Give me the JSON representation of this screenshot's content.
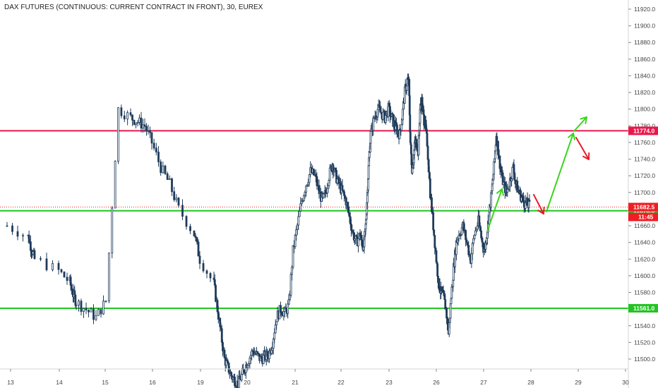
{
  "chart_data": {
    "type": "candlestick",
    "title": "DAX FUTURES (CONTINUOUS: CURRENT CONTRACT IN FRONT), 30, EUREX",
    "y_ticks": [
      11500,
      11520,
      11540,
      11560,
      11580,
      11600,
      11620,
      11640,
      11660,
      11680,
      11700,
      11720,
      11740,
      11760,
      11780,
      11800,
      11820,
      11840,
      11860,
      11880,
      11900,
      11920
    ],
    "ylim": [
      11488,
      11927
    ],
    "x_ticks": [
      "13",
      "14",
      "15",
      "16",
      "19",
      "20",
      "21",
      "22",
      "23",
      "26",
      "27",
      "28",
      "29",
      "30"
    ],
    "session_anchors": [
      [
        0,
        10
      ],
      [
        1,
        40
      ],
      [
        3,
        49
      ],
      [
        4,
        83
      ],
      [
        5,
        99
      ],
      [
        7,
        108
      ],
      [
        10,
        150
      ],
      [
        12,
        185
      ],
      [
        15,
        215
      ],
      [
        18,
        253
      ],
      [
        19,
        275
      ],
      [
        20,
        283
      ],
      [
        21,
        303
      ],
      [
        24,
        318
      ],
      [
        30,
        347
      ],
      [
        36,
        380
      ],
      [
        42,
        415
      ],
      [
        48,
        452
      ],
      [
        54,
        480
      ],
      [
        57,
        495
      ],
      [
        60,
        510
      ],
      [
        63,
        518
      ],
      [
        66,
        525
      ],
      [
        72,
        555
      ],
      [
        78,
        577
      ],
      [
        84,
        590
      ],
      [
        90,
        605
      ],
      [
        93,
        618
      ],
      [
        96,
        628
      ],
      [
        102,
        650
      ],
      [
        108,
        683
      ],
      [
        111,
        693
      ],
      [
        114,
        703
      ],
      [
        117,
        713
      ],
      [
        120,
        727
      ],
      [
        126,
        750
      ],
      [
        129,
        760
      ]
    ],
    "polyline_ohlc": [
      [
        0,
        11660
      ],
      [
        3,
        11620
      ],
      [
        6,
        11578
      ],
      [
        9,
        11550
      ],
      [
        10,
        11570
      ],
      [
        11,
        11800
      ],
      [
        12,
        11790
      ],
      [
        14,
        11780
      ],
      [
        15,
        11760
      ],
      [
        16,
        11730
      ],
      [
        17,
        11710
      ],
      [
        18,
        11680
      ],
      [
        19,
        11650
      ],
      [
        20,
        11620
      ],
      [
        21,
        11590
      ],
      [
        22,
        11560
      ],
      [
        23,
        11530
      ],
      [
        24,
        11500
      ],
      [
        26,
        11480
      ],
      [
        28,
        11470
      ],
      [
        30,
        11490
      ],
      [
        32,
        11510
      ],
      [
        34,
        11500
      ],
      [
        36,
        11505
      ],
      [
        37,
        11520
      ],
      [
        38,
        11550
      ],
      [
        39,
        11560
      ],
      [
        40,
        11555
      ],
      [
        41,
        11565
      ],
      [
        42,
        11630
      ],
      [
        43,
        11660
      ],
      [
        44,
        11690
      ],
      [
        45,
        11710
      ],
      [
        46,
        11725
      ],
      [
        47,
        11720
      ],
      [
        48,
        11700
      ],
      [
        49,
        11690
      ],
      [
        50,
        11700
      ],
      [
        51,
        11720
      ],
      [
        52,
        11735
      ],
      [
        53,
        11720
      ],
      [
        54,
        11710
      ],
      [
        55,
        11700
      ],
      [
        56,
        11690
      ],
      [
        57,
        11670
      ],
      [
        58,
        11650
      ],
      [
        59,
        11640
      ],
      [
        60,
        11650
      ],
      [
        61,
        11640
      ],
      [
        62,
        11635
      ],
      [
        63,
        11660
      ],
      [
        64,
        11700
      ],
      [
        65,
        11740
      ],
      [
        66,
        11770
      ],
      [
        67,
        11790
      ],
      [
        68,
        11800
      ],
      [
        69,
        11795
      ],
      [
        70,
        11790
      ],
      [
        71,
        11800
      ],
      [
        72,
        11790
      ],
      [
        73,
        11780
      ],
      [
        74,
        11775
      ],
      [
        75,
        11770
      ],
      [
        76,
        11790
      ],
      [
        77,
        11820
      ],
      [
        78,
        11835
      ],
      [
        79,
        11830
      ],
      [
        80,
        11760
      ],
      [
        81,
        11730
      ],
      [
        82,
        11740
      ],
      [
        83,
        11760
      ],
      [
        84,
        11760
      ],
      [
        85,
        11750
      ],
      [
        86,
        11800
      ],
      [
        87,
        11810
      ],
      [
        88,
        11790
      ],
      [
        89,
        11780
      ],
      [
        90,
        11760
      ],
      [
        91,
        11700
      ],
      [
        92,
        11660
      ],
      [
        93,
        11620
      ],
      [
        94,
        11590
      ],
      [
        95,
        11580
      ],
      [
        96,
        11575
      ],
      [
        97,
        11560
      ],
      [
        98,
        11530
      ],
      [
        99,
        11575
      ],
      [
        100,
        11610
      ],
      [
        101,
        11640
      ],
      [
        102,
        11650
      ],
      [
        103,
        11660
      ],
      [
        104,
        11640
      ],
      [
        105,
        11620
      ],
      [
        106,
        11650
      ],
      [
        107,
        11665
      ],
      [
        108,
        11640
      ],
      [
        109,
        11630
      ],
      [
        110,
        11650
      ],
      [
        111,
        11675
      ],
      [
        112,
        11700
      ],
      [
        113,
        11730
      ],
      [
        114,
        11770
      ],
      [
        115,
        11745
      ],
      [
        116,
        11725
      ],
      [
        117,
        11710
      ],
      [
        118,
        11700
      ],
      [
        119,
        11715
      ],
      [
        120,
        11730
      ],
      [
        121,
        11710
      ],
      [
        122,
        11700
      ],
      [
        123,
        11695
      ],
      [
        124,
        11688
      ],
      [
        126,
        11684
      ]
    ],
    "horizontal_lines": [
      {
        "value": 11774.0,
        "label": "11774.0",
        "color": "#e8174a"
      },
      {
        "value": 11678.0,
        "label": "11678.0",
        "color": "#22c422"
      },
      {
        "value": 11561.0,
        "label": "11561.0",
        "color": "#22c422"
      }
    ],
    "current_price": {
      "value": 11682.5,
      "label": "11682.5",
      "color": "#ef1d24",
      "time_label": "11:45",
      "time_color": "#ef1d24"
    },
    "arrows": [
      {
        "from": [
          690,
          328
        ],
        "to": [
          711,
          268
        ],
        "color": "#3bd41f"
      },
      {
        "from": [
          756,
          276
        ],
        "to": [
          770,
          303
        ],
        "color": "#e81c2a"
      },
      {
        "from": [
          774,
          300
        ],
        "to": [
          812,
          189
        ],
        "color": "#3bd41f"
      },
      {
        "from": [
          813,
          186
        ],
        "to": [
          831,
          166
        ],
        "color": "#3bd41f"
      },
      {
        "from": [
          816,
          195
        ],
        "to": [
          834,
          226
        ],
        "color": "#e81c2a"
      }
    ],
    "candle_color": "#1f3b5a",
    "grid": false
  }
}
